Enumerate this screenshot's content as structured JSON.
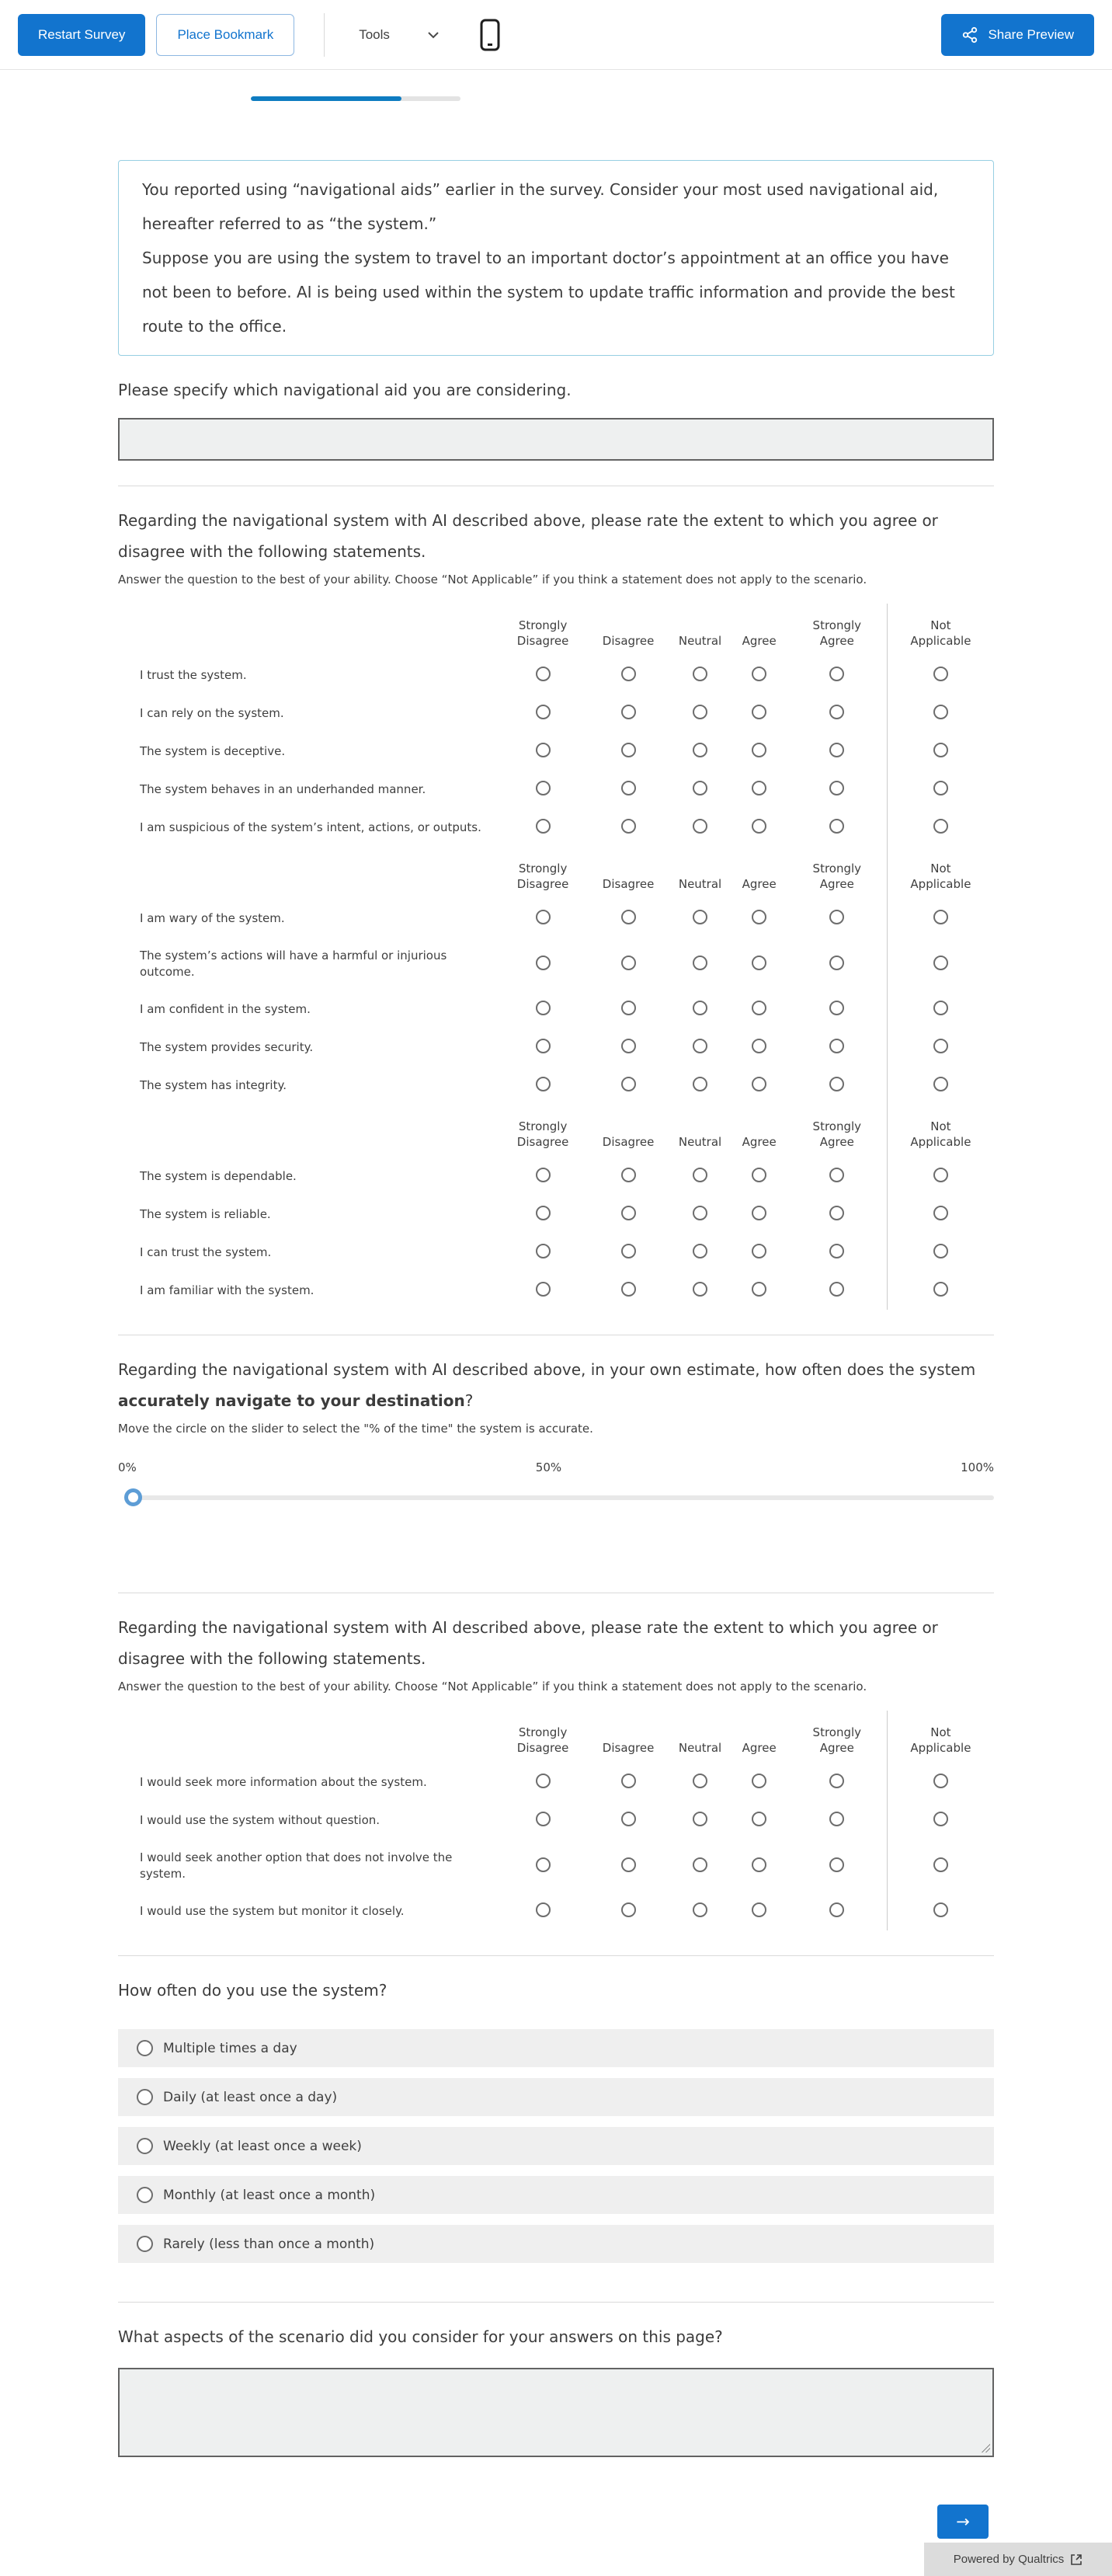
{
  "toolbar": {
    "restart_label": "Restart Survey",
    "bookmark_label": "Place Bookmark",
    "tools_label": "Tools",
    "share_label": "Share Preview"
  },
  "progress": {
    "percent": 72
  },
  "colors": {
    "accent_blue": "#1274ce",
    "progress_blue": "#0e7cc1",
    "intro_border": "#97cfe2",
    "slider_handle": "#5d9dd6"
  },
  "intro": {
    "p1": "You reported using “navigational aids” earlier in the survey. Consider your most used navigational aid, hereafter referred to as “the system.”",
    "p2": "Suppose you are using the system to travel to an important doctor’s appointment at an office you have not been to before. AI is being used within the system to update traffic information and provide the best route to the office."
  },
  "q1": {
    "text": "Please specify which navigational aid you are considering.",
    "value": ""
  },
  "likert1": {
    "question": "Regarding the navigational system with AI described above, please rate the extent to which you agree or disagree with the following statements.",
    "helper": "Answer the question to the best of your ability. Choose “Not Applicable” if you think a statement does not apply to the scenario.",
    "columns": [
      "Strongly Disagree",
      "Disagree",
      "Neutral",
      "Agree",
      "Strongly Agree"
    ],
    "na_label": "Not Applicable",
    "blocks": [
      [
        "I trust the system.",
        "I can rely on the system.",
        "The system is deceptive.",
        "The system behaves in an underhanded manner.",
        "I am suspicious of the system’s intent, actions, or outputs."
      ],
      [
        "I am wary of the system.",
        "The system’s actions will have a harmful or injurious outcome.",
        "I am confident in the system.",
        "The system provides security.",
        "The system has integrity."
      ],
      [
        "The system is dependable.",
        "The system is reliable.",
        "I can trust the system.",
        "I am familiar with the system."
      ]
    ]
  },
  "slider": {
    "q_prefix": "Regarding the navigational system with AI described above, in your own estimate, how often does the system ",
    "q_bold": "accurately navigate to your destination",
    "q_suffix": "?",
    "helper": "Move the circle on the slider to select the \"% of the time\" the system is accurate.",
    "labels": [
      "0%",
      "50%",
      "100%"
    ],
    "value_percent": 0
  },
  "likert2": {
    "question": "Regarding the navigational system with AI described above, please rate the extent to which you agree or disagree with the following statements.",
    "helper": "Answer the question to the best of your ability. Choose “Not Applicable” if you think a statement does not apply to the scenario.",
    "columns": [
      "Strongly Disagree",
      "Disagree",
      "Neutral",
      "Agree",
      "Strongly Agree"
    ],
    "na_label": "Not Applicable",
    "rows": [
      "I would seek more information about the system.",
      "I would use the system without question.",
      "I would seek another option that does not involve the system.",
      "I would use the system but monitor it closely."
    ]
  },
  "frequency": {
    "question": "How often do you use the system?",
    "options": [
      "Multiple times a day",
      "Daily (at least once a day)",
      "Weekly (at least once a week)",
      "Monthly (at least once a month)",
      "Rarely (less than once a month)"
    ]
  },
  "aspects": {
    "question": "What aspects of the scenario did you consider for your answers on this page?",
    "value": ""
  },
  "footer": {
    "next_label": "→",
    "powered_label": "Powered by Qualtrics"
  }
}
